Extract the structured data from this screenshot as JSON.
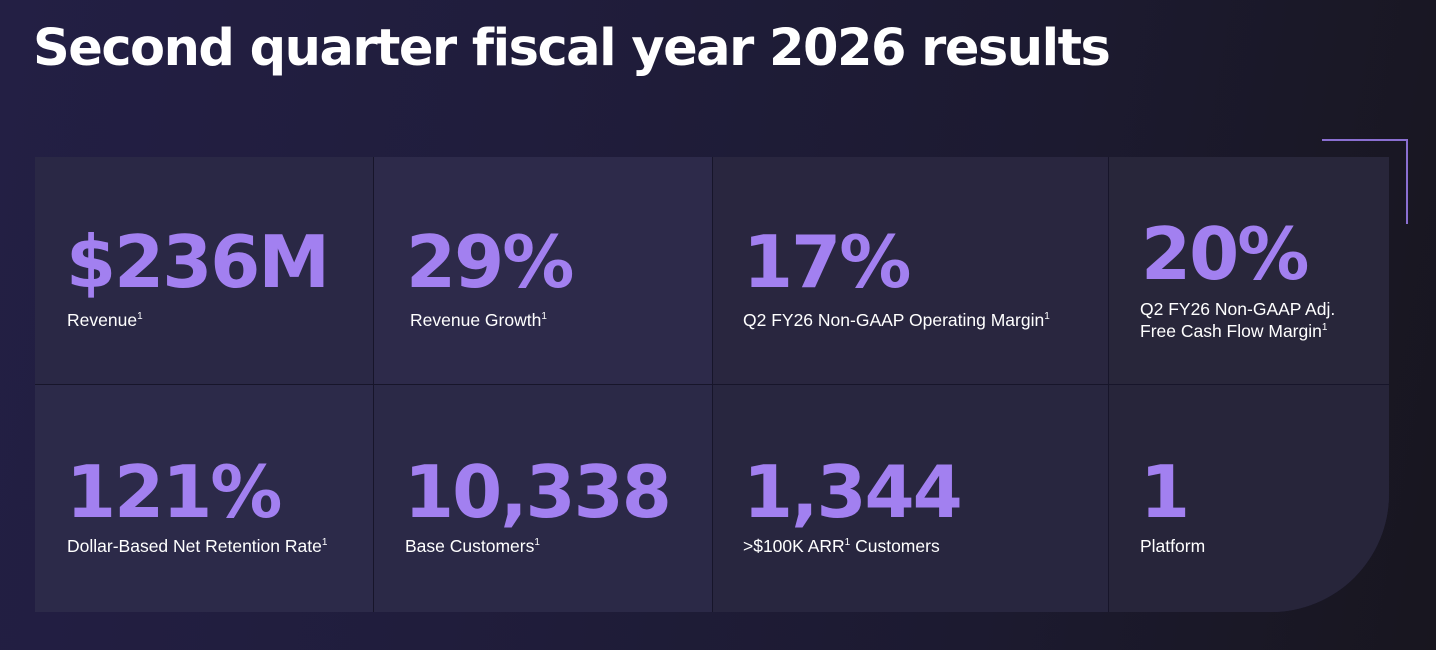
{
  "title": "Second quarter fiscal year 2026 results",
  "accent_color": "#a280f0",
  "metrics": [
    {
      "value": "$236M",
      "label": "Revenue",
      "footnote": "1"
    },
    {
      "value": "29%",
      "label": "Revenue Growth",
      "footnote": "1"
    },
    {
      "value": "17%",
      "label": "Q2 FY26 Non-GAAP Operating Margin",
      "footnote": "1"
    },
    {
      "value": "20%",
      "label_line1": "Q2 FY26 Non-GAAP Adj.",
      "label_line2": "Free Cash Flow Margin",
      "footnote": "1"
    },
    {
      "value": "121%",
      "label": "Dollar-Based Net Retention Rate",
      "footnote": "1"
    },
    {
      "value": "10,338",
      "label": "Base Customers",
      "footnote": "1"
    },
    {
      "value": "1,344",
      "label_pre": ">$100K ARR",
      "footnote": "1",
      "label_post": " Customers"
    },
    {
      "value": "1",
      "label": "Platform"
    }
  ]
}
